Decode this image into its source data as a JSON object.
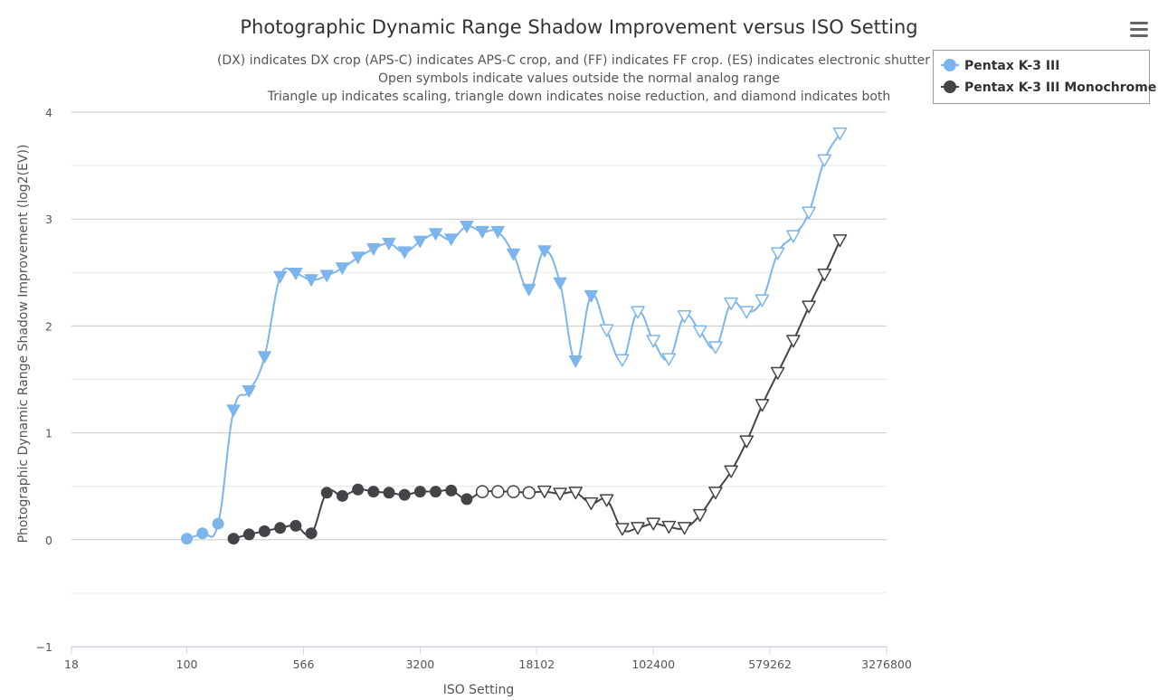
{
  "chart_data": {
    "type": "line",
    "title": "Photographic Dynamic Range Shadow Improvement versus ISO Setting",
    "subtitle": [
      "(DX) indicates DX crop (APS-C) indicates APS-C crop, and (FF) indicates FF crop. (ES) indicates electronic shutter",
      "Open symbols indicate values outside the normal analog range",
      "Triangle up indicates scaling, triangle down indicates noise reduction, and diamond indicates both"
    ],
    "xlabel": "ISO Setting",
    "ylabel": "Photographic Dynamic Range Shadow Improvement (log2(EV))",
    "x_scale": "log2",
    "xlim": [
      18,
      3276800
    ],
    "ylim": [
      -1,
      4
    ],
    "x_ticks": [
      "18",
      "100",
      "566",
      "3200",
      "18102",
      "102400",
      "579262",
      "3276800"
    ],
    "y_ticks": [
      "4",
      "3",
      "2",
      "1",
      "0",
      "−1"
    ],
    "grid": true,
    "legend": "top-right",
    "series": [
      {
        "name": "Pentax K-3 III",
        "color": "#7cb5ec",
        "points": [
          {
            "x": 100,
            "y": 0.01,
            "m": "circle"
          },
          {
            "x": 126,
            "y": 0.06,
            "m": "circle"
          },
          {
            "x": 159,
            "y": 0.15,
            "m": "circle"
          },
          {
            "x": 200,
            "y": 1.21,
            "m": "tri-down"
          },
          {
            "x": 252,
            "y": 1.39,
            "m": "tri-down"
          },
          {
            "x": 317,
            "y": 1.71,
            "m": "tri-down"
          },
          {
            "x": 400,
            "y": 2.46,
            "m": "tri-down"
          },
          {
            "x": 504,
            "y": 2.49,
            "m": "tri-down"
          },
          {
            "x": 635,
            "y": 2.43,
            "m": "tri-down"
          },
          {
            "x": 800,
            "y": 2.47,
            "m": "tri-down"
          },
          {
            "x": 1008,
            "y": 2.54,
            "m": "tri-down"
          },
          {
            "x": 1270,
            "y": 2.64,
            "m": "tri-down"
          },
          {
            "x": 1600,
            "y": 2.72,
            "m": "tri-down"
          },
          {
            "x": 2016,
            "y": 2.77,
            "m": "tri-down"
          },
          {
            "x": 2540,
            "y": 2.69,
            "m": "tri-down"
          },
          {
            "x": 3200,
            "y": 2.79,
            "m": "tri-down"
          },
          {
            "x": 4032,
            "y": 2.86,
            "m": "tri-down"
          },
          {
            "x": 5080,
            "y": 2.81,
            "m": "tri-down"
          },
          {
            "x": 6400,
            "y": 2.93,
            "m": "tri-down"
          },
          {
            "x": 8063,
            "y": 2.88,
            "m": "tri-down"
          },
          {
            "x": 10159,
            "y": 2.88,
            "m": "tri-down"
          },
          {
            "x": 12800,
            "y": 2.67,
            "m": "tri-down"
          },
          {
            "x": 16127,
            "y": 2.34,
            "m": "tri-down"
          },
          {
            "x": 20319,
            "y": 2.7,
            "m": "tri-down"
          },
          {
            "x": 25600,
            "y": 2.4,
            "m": "tri-down"
          },
          {
            "x": 32254,
            "y": 1.67,
            "m": "tri-down"
          },
          {
            "x": 40637,
            "y": 2.28,
            "m": "tri-down"
          },
          {
            "x": 51200,
            "y": 1.96,
            "m": "tri-down-open"
          },
          {
            "x": 64508,
            "y": 1.68,
            "m": "tri-down-open"
          },
          {
            "x": 81275,
            "y": 2.13,
            "m": "tri-down-open"
          },
          {
            "x": 102400,
            "y": 1.86,
            "m": "tri-down-open"
          },
          {
            "x": 129016,
            "y": 1.69,
            "m": "tri-down-open"
          },
          {
            "x": 162550,
            "y": 2.09,
            "m": "tri-down-open"
          },
          {
            "x": 204800,
            "y": 1.95,
            "m": "tri-down-open"
          },
          {
            "x": 258032,
            "y": 1.8,
            "m": "tri-down-open"
          },
          {
            "x": 325100,
            "y": 2.21,
            "m": "tri-down-open"
          },
          {
            "x": 409600,
            "y": 2.13,
            "m": "tri-down-open"
          },
          {
            "x": 516064,
            "y": 2.24,
            "m": "tri-down-open"
          },
          {
            "x": 650199,
            "y": 2.68,
            "m": "tri-down-open"
          },
          {
            "x": 819200,
            "y": 2.84,
            "m": "tri-down-open"
          },
          {
            "x": 1032128,
            "y": 3.06,
            "m": "tri-down-open"
          },
          {
            "x": 1300398,
            "y": 3.55,
            "m": "tri-down-open"
          },
          {
            "x": 1638400,
            "y": 3.8,
            "m": "tri-down-open"
          }
        ]
      },
      {
        "name": "Pentax K-3 III Monochrome",
        "color": "#434348",
        "points": [
          {
            "x": 200,
            "y": 0.01,
            "m": "circle"
          },
          {
            "x": 252,
            "y": 0.05,
            "m": "circle"
          },
          {
            "x": 317,
            "y": 0.08,
            "m": "circle"
          },
          {
            "x": 400,
            "y": 0.11,
            "m": "circle"
          },
          {
            "x": 504,
            "y": 0.13,
            "m": "circle"
          },
          {
            "x": 635,
            "y": 0.06,
            "m": "circle"
          },
          {
            "x": 800,
            "y": 0.44,
            "m": "circle"
          },
          {
            "x": 1008,
            "y": 0.41,
            "m": "circle"
          },
          {
            "x": 1270,
            "y": 0.47,
            "m": "circle"
          },
          {
            "x": 1600,
            "y": 0.45,
            "m": "circle"
          },
          {
            "x": 2016,
            "y": 0.44,
            "m": "circle"
          },
          {
            "x": 2540,
            "y": 0.42,
            "m": "circle"
          },
          {
            "x": 3200,
            "y": 0.45,
            "m": "circle"
          },
          {
            "x": 4032,
            "y": 0.45,
            "m": "circle"
          },
          {
            "x": 5080,
            "y": 0.46,
            "m": "circle"
          },
          {
            "x": 6400,
            "y": 0.38,
            "m": "circle"
          },
          {
            "x": 8063,
            "y": 0.45,
            "m": "circle-open"
          },
          {
            "x": 10159,
            "y": 0.45,
            "m": "circle-open"
          },
          {
            "x": 12800,
            "y": 0.45,
            "m": "circle-open"
          },
          {
            "x": 16127,
            "y": 0.44,
            "m": "circle-open"
          },
          {
            "x": 20319,
            "y": 0.45,
            "m": "tri-down-open"
          },
          {
            "x": 25600,
            "y": 0.43,
            "m": "tri-down-open"
          },
          {
            "x": 32254,
            "y": 0.44,
            "m": "tri-down-open"
          },
          {
            "x": 40637,
            "y": 0.34,
            "m": "tri-down-open"
          },
          {
            "x": 51200,
            "y": 0.37,
            "m": "tri-down-open"
          },
          {
            "x": 64508,
            "y": 0.1,
            "m": "tri-down-open"
          },
          {
            "x": 81275,
            "y": 0.11,
            "m": "tri-down-open"
          },
          {
            "x": 102400,
            "y": 0.15,
            "m": "tri-down-open"
          },
          {
            "x": 129016,
            "y": 0.12,
            "m": "tri-down-open"
          },
          {
            "x": 162550,
            "y": 0.11,
            "m": "tri-down-open"
          },
          {
            "x": 204800,
            "y": 0.23,
            "m": "tri-down-open"
          },
          {
            "x": 258032,
            "y": 0.44,
            "m": "tri-down-open"
          },
          {
            "x": 325100,
            "y": 0.64,
            "m": "tri-down-open"
          },
          {
            "x": 409600,
            "y": 0.92,
            "m": "tri-down-open"
          },
          {
            "x": 516064,
            "y": 1.26,
            "m": "tri-down-open"
          },
          {
            "x": 650199,
            "y": 1.56,
            "m": "tri-down-open"
          },
          {
            "x": 819200,
            "y": 1.86,
            "m": "tri-down-open"
          },
          {
            "x": 1032128,
            "y": 2.18,
            "m": "tri-down-open"
          },
          {
            "x": 1300398,
            "y": 2.48,
            "m": "tri-down-open"
          },
          {
            "x": 1638400,
            "y": 2.8,
            "m": "tri-down-open"
          }
        ]
      }
    ]
  },
  "menu": {
    "icon": "hamburger-menu-icon"
  }
}
